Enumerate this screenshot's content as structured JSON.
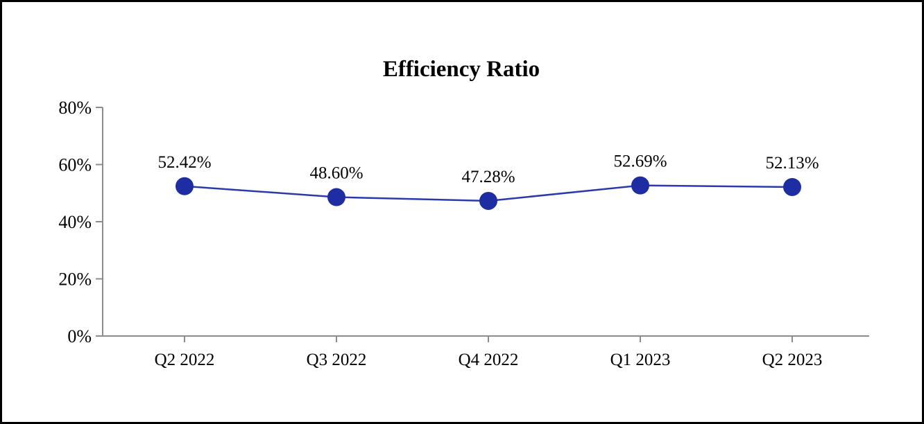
{
  "chart_data": {
    "type": "line",
    "title": "Efficiency Ratio",
    "categories": [
      "Q2 2022",
      "Q3 2022",
      "Q4 2022",
      "Q1 2023",
      "Q2 2023"
    ],
    "series": [
      {
        "name": "Efficiency Ratio",
        "values": [
          52.42,
          48.6,
          47.28,
          52.69,
          52.13
        ],
        "labels": [
          "52.42%",
          "48.60%",
          "47.28%",
          "52.69%",
          "52.13%"
        ]
      }
    ],
    "xlabel": "",
    "ylabel": "",
    "ylim": [
      0,
      80
    ],
    "ytick_step": 20,
    "ytick_labels": [
      "0%",
      "20%",
      "40%",
      "60%",
      "80%"
    ],
    "grid": false,
    "legend": "none",
    "colors": {
      "marker": "#1F2DA3",
      "line": "#2A3AAD",
      "axis": "#8C8C8C",
      "text": "#000000",
      "background": "#FFFFFF",
      "border": "#000000"
    }
  }
}
